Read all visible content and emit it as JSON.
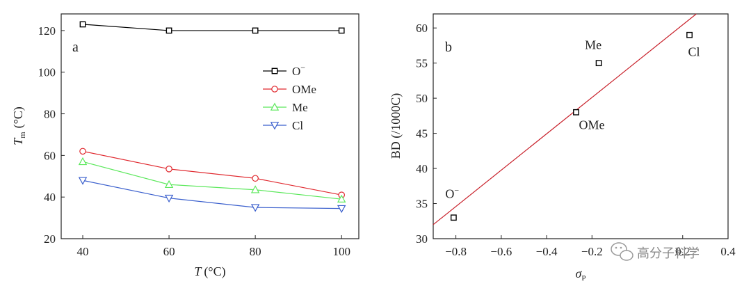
{
  "chart_data": [
    {
      "type": "line",
      "panel": "a",
      "xlabel_italic": "T",
      "xlabel_unit": "(°C)",
      "ylabel_italic": "T",
      "ylabel_sub": "m",
      "ylabel_unit": "(°C)",
      "xlim": [
        35,
        104
      ],
      "ylim": [
        20,
        128
      ],
      "xticks": [
        40,
        60,
        80,
        100
      ],
      "yticks": [
        20,
        40,
        60,
        80,
        100,
        120
      ],
      "legend_position": "top-right",
      "series": [
        {
          "name": "O",
          "sup": "−",
          "color": "#000000",
          "marker": "square",
          "x": [
            40,
            60,
            80,
            100
          ],
          "values": [
            123,
            120,
            120,
            120
          ]
        },
        {
          "name": "OMe",
          "sup": "",
          "color": "#e0282e",
          "marker": "circle",
          "x": [
            40,
            60,
            80,
            100
          ],
          "values": [
            62,
            53.5,
            49,
            41
          ]
        },
        {
          "name": "Me",
          "sup": "",
          "color": "#5ce85c",
          "marker": "triangle-up",
          "x": [
            40,
            60,
            80,
            100
          ],
          "values": [
            57,
            46,
            43.5,
            39
          ]
        },
        {
          "name": "Cl",
          "sup": "",
          "color": "#3a5fcd",
          "marker": "triangle-down",
          "x": [
            40,
            60,
            80,
            100
          ],
          "values": [
            48,
            39.5,
            35,
            34.5
          ]
        }
      ]
    },
    {
      "type": "scatter",
      "panel": "b",
      "xlabel_italic": "σ",
      "xlabel_sub": "P",
      "ylabel": "BD (/1000C)",
      "xlim": [
        -0.9,
        0.4
      ],
      "ylim": [
        30,
        62
      ],
      "xticks": [
        -0.8,
        -0.6,
        -0.4,
        -0.2,
        0.2,
        0.4
      ],
      "xtick_labels": [
        "−0.8",
        "−0.6",
        "−0.4",
        "−0.2",
        "0.2",
        "0.4"
      ],
      "yticks": [
        30,
        35,
        40,
        45,
        50,
        55,
        60
      ],
      "points": [
        {
          "label": "O",
          "sup": "−",
          "x": -0.81,
          "y": 33
        },
        {
          "label": "OMe",
          "sup": "",
          "x": -0.27,
          "y": 48
        },
        {
          "label": "Me",
          "sup": "",
          "x": -0.17,
          "y": 55
        },
        {
          "label": "Cl",
          "sup": "",
          "x": 0.23,
          "y": 59
        }
      ],
      "fit_line": {
        "color": "#c8202a",
        "x": [
          -0.9,
          0.26
        ],
        "y": [
          32,
          62
        ]
      }
    }
  ],
  "watermark": "高分子科学"
}
